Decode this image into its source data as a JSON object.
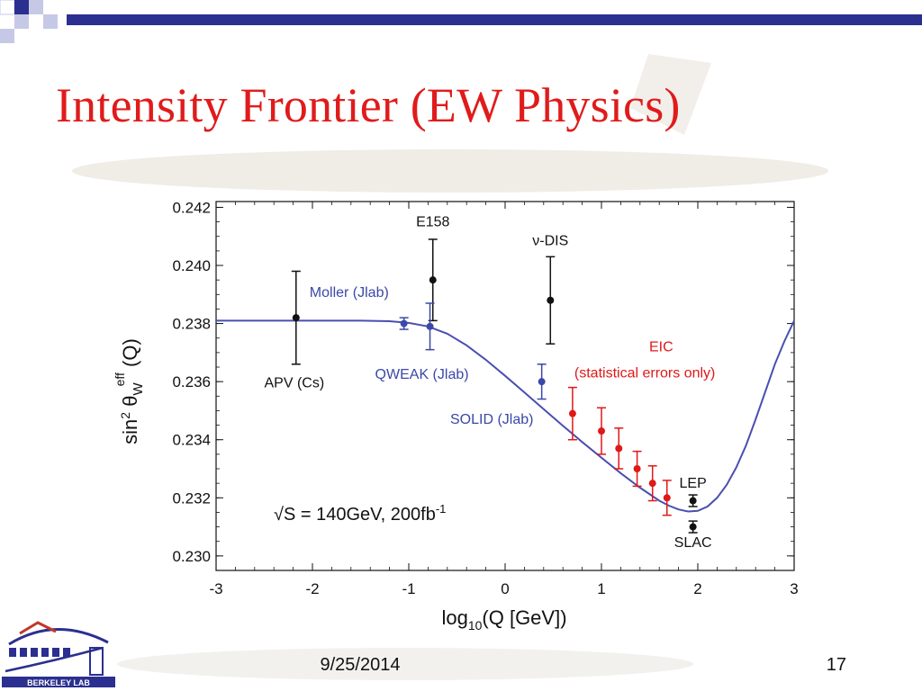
{
  "slide": {
    "title": "Intensity Frontier (EW Physics)",
    "date": "9/25/2014",
    "page_number": "17",
    "logo_text": "BERKELEY LAB"
  },
  "colors": {
    "title": "#e01b1b",
    "accent_bar": "#2b2f8f",
    "curve": "#4a4fb0",
    "blue_points": "#3a48a8",
    "red_points": "#e01818",
    "black_points": "#111111",
    "eic_label": "#e01818",
    "blue_label": "#3a48a8"
  },
  "chart_data": {
    "type": "scatter",
    "title": "",
    "xlabel_parts": {
      "pre": "log",
      "sub": "10",
      "post": "(Q [GeV])"
    },
    "ylabel_parts": {
      "a": "sin",
      "sup1": "2",
      "b": " θ",
      "sub": "W",
      "sup2": "eff",
      "c": " (Q)"
    },
    "xlim": [
      -3,
      3
    ],
    "ylim": [
      0.2295,
      0.2422
    ],
    "x_ticks": [
      -3,
      -2,
      -1,
      0,
      1,
      2,
      3
    ],
    "x_tick_labels": [
      "-3",
      "-2",
      "-1",
      "0",
      "1",
      "2",
      "3"
    ],
    "y_ticks": [
      0.23,
      0.232,
      0.234,
      0.236,
      0.238,
      0.24,
      0.242
    ],
    "y_tick_labels": [
      "0.230",
      "0.232",
      "0.234",
      "0.236",
      "0.238",
      "0.240",
      "0.242"
    ],
    "grid": false,
    "curve": {
      "x": [
        -3.0,
        -2.5,
        -2.0,
        -1.5,
        -1.2,
        -1.0,
        -0.8,
        -0.6,
        -0.4,
        -0.2,
        0.0,
        0.2,
        0.4,
        0.6,
        0.8,
        1.0,
        1.2,
        1.4,
        1.6,
        1.7,
        1.8,
        1.9,
        2.0,
        2.1,
        2.2,
        2.3,
        2.4,
        2.5,
        2.6,
        2.7,
        2.8,
        2.9,
        3.0
      ],
      "y": [
        0.2381,
        0.2381,
        0.2381,
        0.2381,
        0.23808,
        0.23802,
        0.2379,
        0.23765,
        0.23725,
        0.23675,
        0.2362,
        0.23563,
        0.23505,
        0.23448,
        0.23392,
        0.23338,
        0.23285,
        0.23235,
        0.2319,
        0.23173,
        0.2316,
        0.23153,
        0.23155,
        0.2317,
        0.232,
        0.23245,
        0.23305,
        0.2338,
        0.2347,
        0.23565,
        0.2366,
        0.2374,
        0.2381
      ]
    },
    "series": [
      {
        "group": "black",
        "points": [
          {
            "x": -2.17,
            "y": 0.2382,
            "err": 0.0016
          },
          {
            "x": -0.75,
            "y": 0.2395,
            "err": 0.0014
          },
          {
            "x": 0.47,
            "y": 0.2388,
            "err": 0.0015
          },
          {
            "x": 1.95,
            "y": 0.2319,
            "err": 0.0002
          },
          {
            "x": 1.95,
            "y": 0.231,
            "err": 0.0002
          }
        ]
      },
      {
        "group": "blue",
        "points": [
          {
            "x": -1.05,
            "y": 0.238,
            "err": 0.0002
          },
          {
            "x": -0.78,
            "y": 0.2379,
            "err": 0.0008
          },
          {
            "x": 0.38,
            "y": 0.236,
            "err": 0.0006
          }
        ]
      },
      {
        "group": "red",
        "points": [
          {
            "x": 0.7,
            "y": 0.2349,
            "err": 0.0009
          },
          {
            "x": 1.0,
            "y": 0.2343,
            "err": 0.0008
          },
          {
            "x": 1.18,
            "y": 0.2337,
            "err": 0.0007
          },
          {
            "x": 1.37,
            "y": 0.233,
            "err": 0.0006
          },
          {
            "x": 1.53,
            "y": 0.2325,
            "err": 0.0006
          },
          {
            "x": 1.68,
            "y": 0.232,
            "err": 0.0006
          }
        ]
      }
    ],
    "annotations": [
      {
        "text": "E158",
        "x": -0.75,
        "y": 0.24135,
        "color": "#111111",
        "anchor": "middle"
      },
      {
        "text": "ν-DIS",
        "x": 0.47,
        "y": 0.2407,
        "color": "#111111",
        "anchor": "middle"
      },
      {
        "text": "Moller (Jlab)",
        "x": -2.03,
        "y": 0.23892,
        "color": "#3a48a8",
        "anchor": "start"
      },
      {
        "text": "APV (Cs)",
        "x": -2.5,
        "y": 0.2358,
        "color": "#111111",
        "anchor": "start"
      },
      {
        "text": "QWEAK (Jlab)",
        "x": -1.35,
        "y": 0.2361,
        "color": "#3a48a8",
        "anchor": "start"
      },
      {
        "text": "EIC",
        "x": 1.62,
        "y": 0.23705,
        "color": "#e01818",
        "anchor": "middle"
      },
      {
        "text": "(statistical errors only)",
        "x": 1.45,
        "y": 0.23615,
        "color": "#e01818",
        "anchor": "middle"
      },
      {
        "text": "SOLID (Jlab)",
        "x": -0.57,
        "y": 0.23455,
        "color": "#3a48a8",
        "anchor": "start"
      },
      {
        "text": "LEP",
        "x": 1.95,
        "y": 0.23235,
        "color": "#111111",
        "anchor": "middle"
      },
      {
        "text": "SLAC",
        "x": 1.95,
        "y": 0.2303,
        "color": "#111111",
        "anchor": "middle"
      }
    ],
    "inset_label": {
      "main": "√S = 140GeV, 200fb",
      "sup": "-1"
    }
  }
}
